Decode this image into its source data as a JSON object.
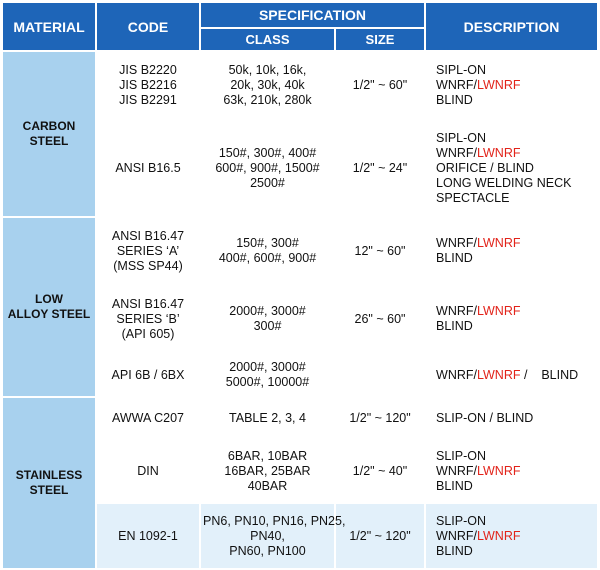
{
  "header": {
    "material": "MATERIAL",
    "code": "CODE",
    "specification": "SPECIFICATION",
    "class": "CLASS",
    "size": "SIZE",
    "description": "DESCRIPTION"
  },
  "materials": {
    "carbon": [
      "CARBON",
      "STEEL"
    ],
    "alloy": [
      "LOW",
      "ALLOY STEEL"
    ],
    "stainless": [
      "STAINLESS",
      "STEEL"
    ]
  },
  "rows": [
    {
      "code": [
        "JIS B2220",
        "JIS B2216",
        "JIS B2291"
      ],
      "class": [
        "50k, 10k, 16k,",
        "20k, 30k, 40k",
        "63k, 210k, 280k"
      ],
      "size": "1/2\" ~ 60\"",
      "desc": [
        "SIPL-ON",
        "WNRF/LWNRF",
        "BLIND"
      ]
    },
    {
      "code": [
        "ANSI B16.5"
      ],
      "class": [
        "150#, 300#, 400#",
        "600#, 900#, 1500#",
        "2500#"
      ],
      "size": "1/2\" ~ 24\"",
      "desc": [
        "SIPL-ON",
        "WNRF/LWNRF",
        "ORIFICE / BLIND",
        "LONG WELDING NECK",
        "SPECTACLE"
      ]
    },
    {
      "code": [
        "ANSI B16.47",
        "SERIES   ‘A’",
        "(MSS SP44)"
      ],
      "class": [
        "150#, 300#",
        "400#, 600#, 900#"
      ],
      "size": "12\" ~ 60\"",
      "desc": [
        "WNRF/LWNRF",
        "BLIND"
      ]
    },
    {
      "code": [
        "ANSI B16.47",
        "SERIES   ‘B’",
        "(API 605)"
      ],
      "class": [
        "2000#, 3000#",
        "300#"
      ],
      "size": "26\" ~ 60\"",
      "desc": [
        "WNRF/LWNRF",
        "BLIND"
      ]
    },
    {
      "code": [
        "API 6B / 6BX"
      ],
      "class": [
        "2000#, 3000#",
        "5000#, 10000#"
      ],
      "size": "",
      "desc": [
        "WNRF/LWNRF /    BLIND"
      ]
    },
    {
      "code": [
        "AWWA C207"
      ],
      "class": [
        "TABLE 2, 3, 4"
      ],
      "size": "1/2\" ~ 120\"",
      "desc": [
        "SLIP-ON / BLIND"
      ]
    },
    {
      "code": [
        "DIN"
      ],
      "class": [
        "6BAR, 10BAR",
        "16BAR, 25BAR",
        "40BAR"
      ],
      "size": "1/2\" ~ 40\"",
      "desc": [
        "SLIP-ON",
        "WNRF/LWNRF",
        "BLIND"
      ]
    },
    {
      "code": [
        "EN 1092-1"
      ],
      "class": [
        "PN6, PN10, PN16, PN25,",
        "PN40,",
        "PN60, PN100"
      ],
      "size": "1/2\" ~ 120\"",
      "desc": [
        "SLIP-ON",
        "WNRF/LWNRF",
        "BLIND"
      ]
    }
  ],
  "colors": {
    "header_blue": "#1e65b8",
    "material_blue": "#a8d1ee",
    "row_light": "#e2f0fa",
    "red_text": "#e2231a"
  }
}
